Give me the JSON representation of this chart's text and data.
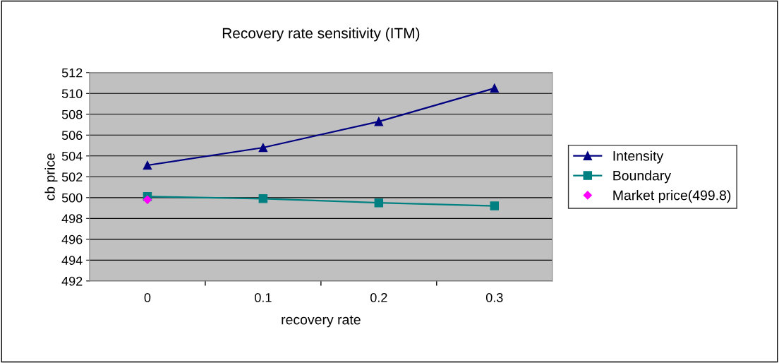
{
  "chart_data": {
    "type": "line",
    "title": "Recovery rate sensitivity (ITM)",
    "xlabel": "recovery rate",
    "ylabel": "cb price",
    "categories": [
      "0",
      "0.1",
      "0.2",
      "0.3"
    ],
    "series": [
      {
        "name": "Intensity",
        "color": "#000080",
        "marker": "triangle",
        "values": [
          503.1,
          504.8,
          507.3,
          510.5
        ]
      },
      {
        "name": "Boundary",
        "color": "#008080",
        "marker": "square",
        "values": [
          500.1,
          499.9,
          499.5,
          499.2
        ]
      },
      {
        "name": "Market price(499.8)",
        "type": "scatter",
        "color": "#ff00ff",
        "marker": "diamond",
        "x": [
          "0"
        ],
        "values": [
          499.8
        ]
      }
    ],
    "ylim": [
      492,
      512
    ],
    "yticks": [
      492,
      494,
      496,
      498,
      500,
      502,
      504,
      506,
      508,
      510,
      512
    ],
    "grid": "y",
    "legend": "right",
    "line_style": "solid"
  }
}
